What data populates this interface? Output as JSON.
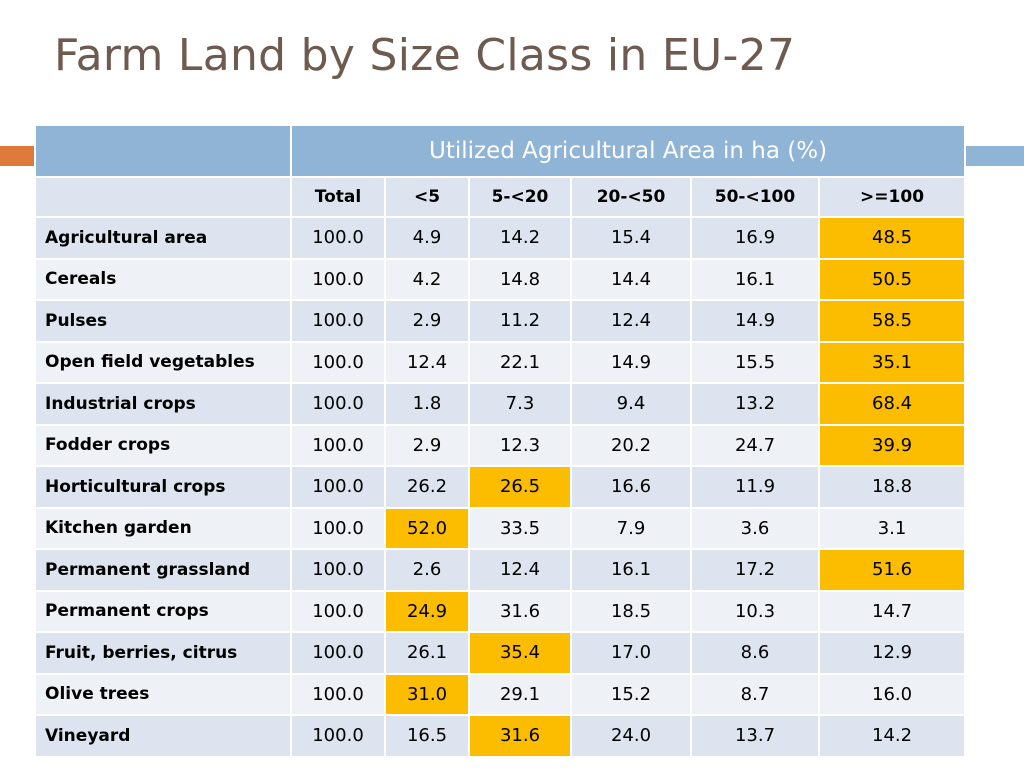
{
  "slide": {
    "title": "Farm Land by Size Class in EU-27"
  },
  "colors": {
    "title": "#6e5a4f",
    "header_blue": "#8fb4d6",
    "row_dark": "#dde4ef",
    "row_light": "#eef1f6",
    "highlight": "#fcbd00",
    "accent_orange": "#e07a3b"
  },
  "table": {
    "banner": "Utilized Agricultural Area in ha (%)",
    "columns": [
      "Total",
      "<5",
      "5-<20",
      "20-<50",
      "50-<100",
      ">=100"
    ],
    "rows": [
      {
        "label": "Agricultural area",
        "values": [
          "100.0",
          "4.9",
          "14.2",
          "15.4",
          "16.9",
          "48.5"
        ],
        "highlight_index": 5
      },
      {
        "label": "Cereals",
        "values": [
          "100.0",
          "4.2",
          "14.8",
          "14.4",
          "16.1",
          "50.5"
        ],
        "highlight_index": 5
      },
      {
        "label": "Pulses",
        "values": [
          "100.0",
          "2.9",
          "11.2",
          "12.4",
          "14.9",
          "58.5"
        ],
        "highlight_index": 5
      },
      {
        "label": "Open field vegetables",
        "values": [
          "100.0",
          "12.4",
          "22.1",
          "14.9",
          "15.5",
          "35.1"
        ],
        "highlight_index": 5
      },
      {
        "label": "Industrial crops",
        "values": [
          "100.0",
          "1.8",
          "7.3",
          "9.4",
          "13.2",
          "68.4"
        ],
        "highlight_index": 5
      },
      {
        "label": "Fodder crops",
        "values": [
          "100.0",
          "2.9",
          "12.3",
          "20.2",
          "24.7",
          "39.9"
        ],
        "highlight_index": 5
      },
      {
        "label": "Horticultural crops",
        "values": [
          "100.0",
          "26.2",
          "26.5",
          "16.6",
          "11.9",
          "18.8"
        ],
        "highlight_index": 2
      },
      {
        "label": "Kitchen garden",
        "values": [
          "100.0",
          "52.0",
          "33.5",
          "7.9",
          "3.6",
          "3.1"
        ],
        "highlight_index": 1
      },
      {
        "label": "Permanent grassland",
        "values": [
          "100.0",
          "2.6",
          "12.4",
          "16.1",
          "17.2",
          "51.6"
        ],
        "highlight_index": 5
      },
      {
        "label": "Permanent crops",
        "values": [
          "100.0",
          "24.9",
          "31.6",
          "18.5",
          "10.3",
          "14.7"
        ],
        "highlight_index": 1
      },
      {
        "label": "Fruit, berries, citrus",
        "values": [
          "100.0",
          "26.1",
          "35.4",
          "17.0",
          "8.6",
          "12.9"
        ],
        "highlight_index": 2
      },
      {
        "label": "Olive trees",
        "values": [
          "100.0",
          "31.0",
          "29.1",
          "15.2",
          "8.7",
          "16.0"
        ],
        "highlight_index": 1
      },
      {
        "label": "Vineyard",
        "values": [
          "100.0",
          "16.5",
          "31.6",
          "24.0",
          "13.7",
          "14.2"
        ],
        "highlight_index": 2
      }
    ]
  }
}
